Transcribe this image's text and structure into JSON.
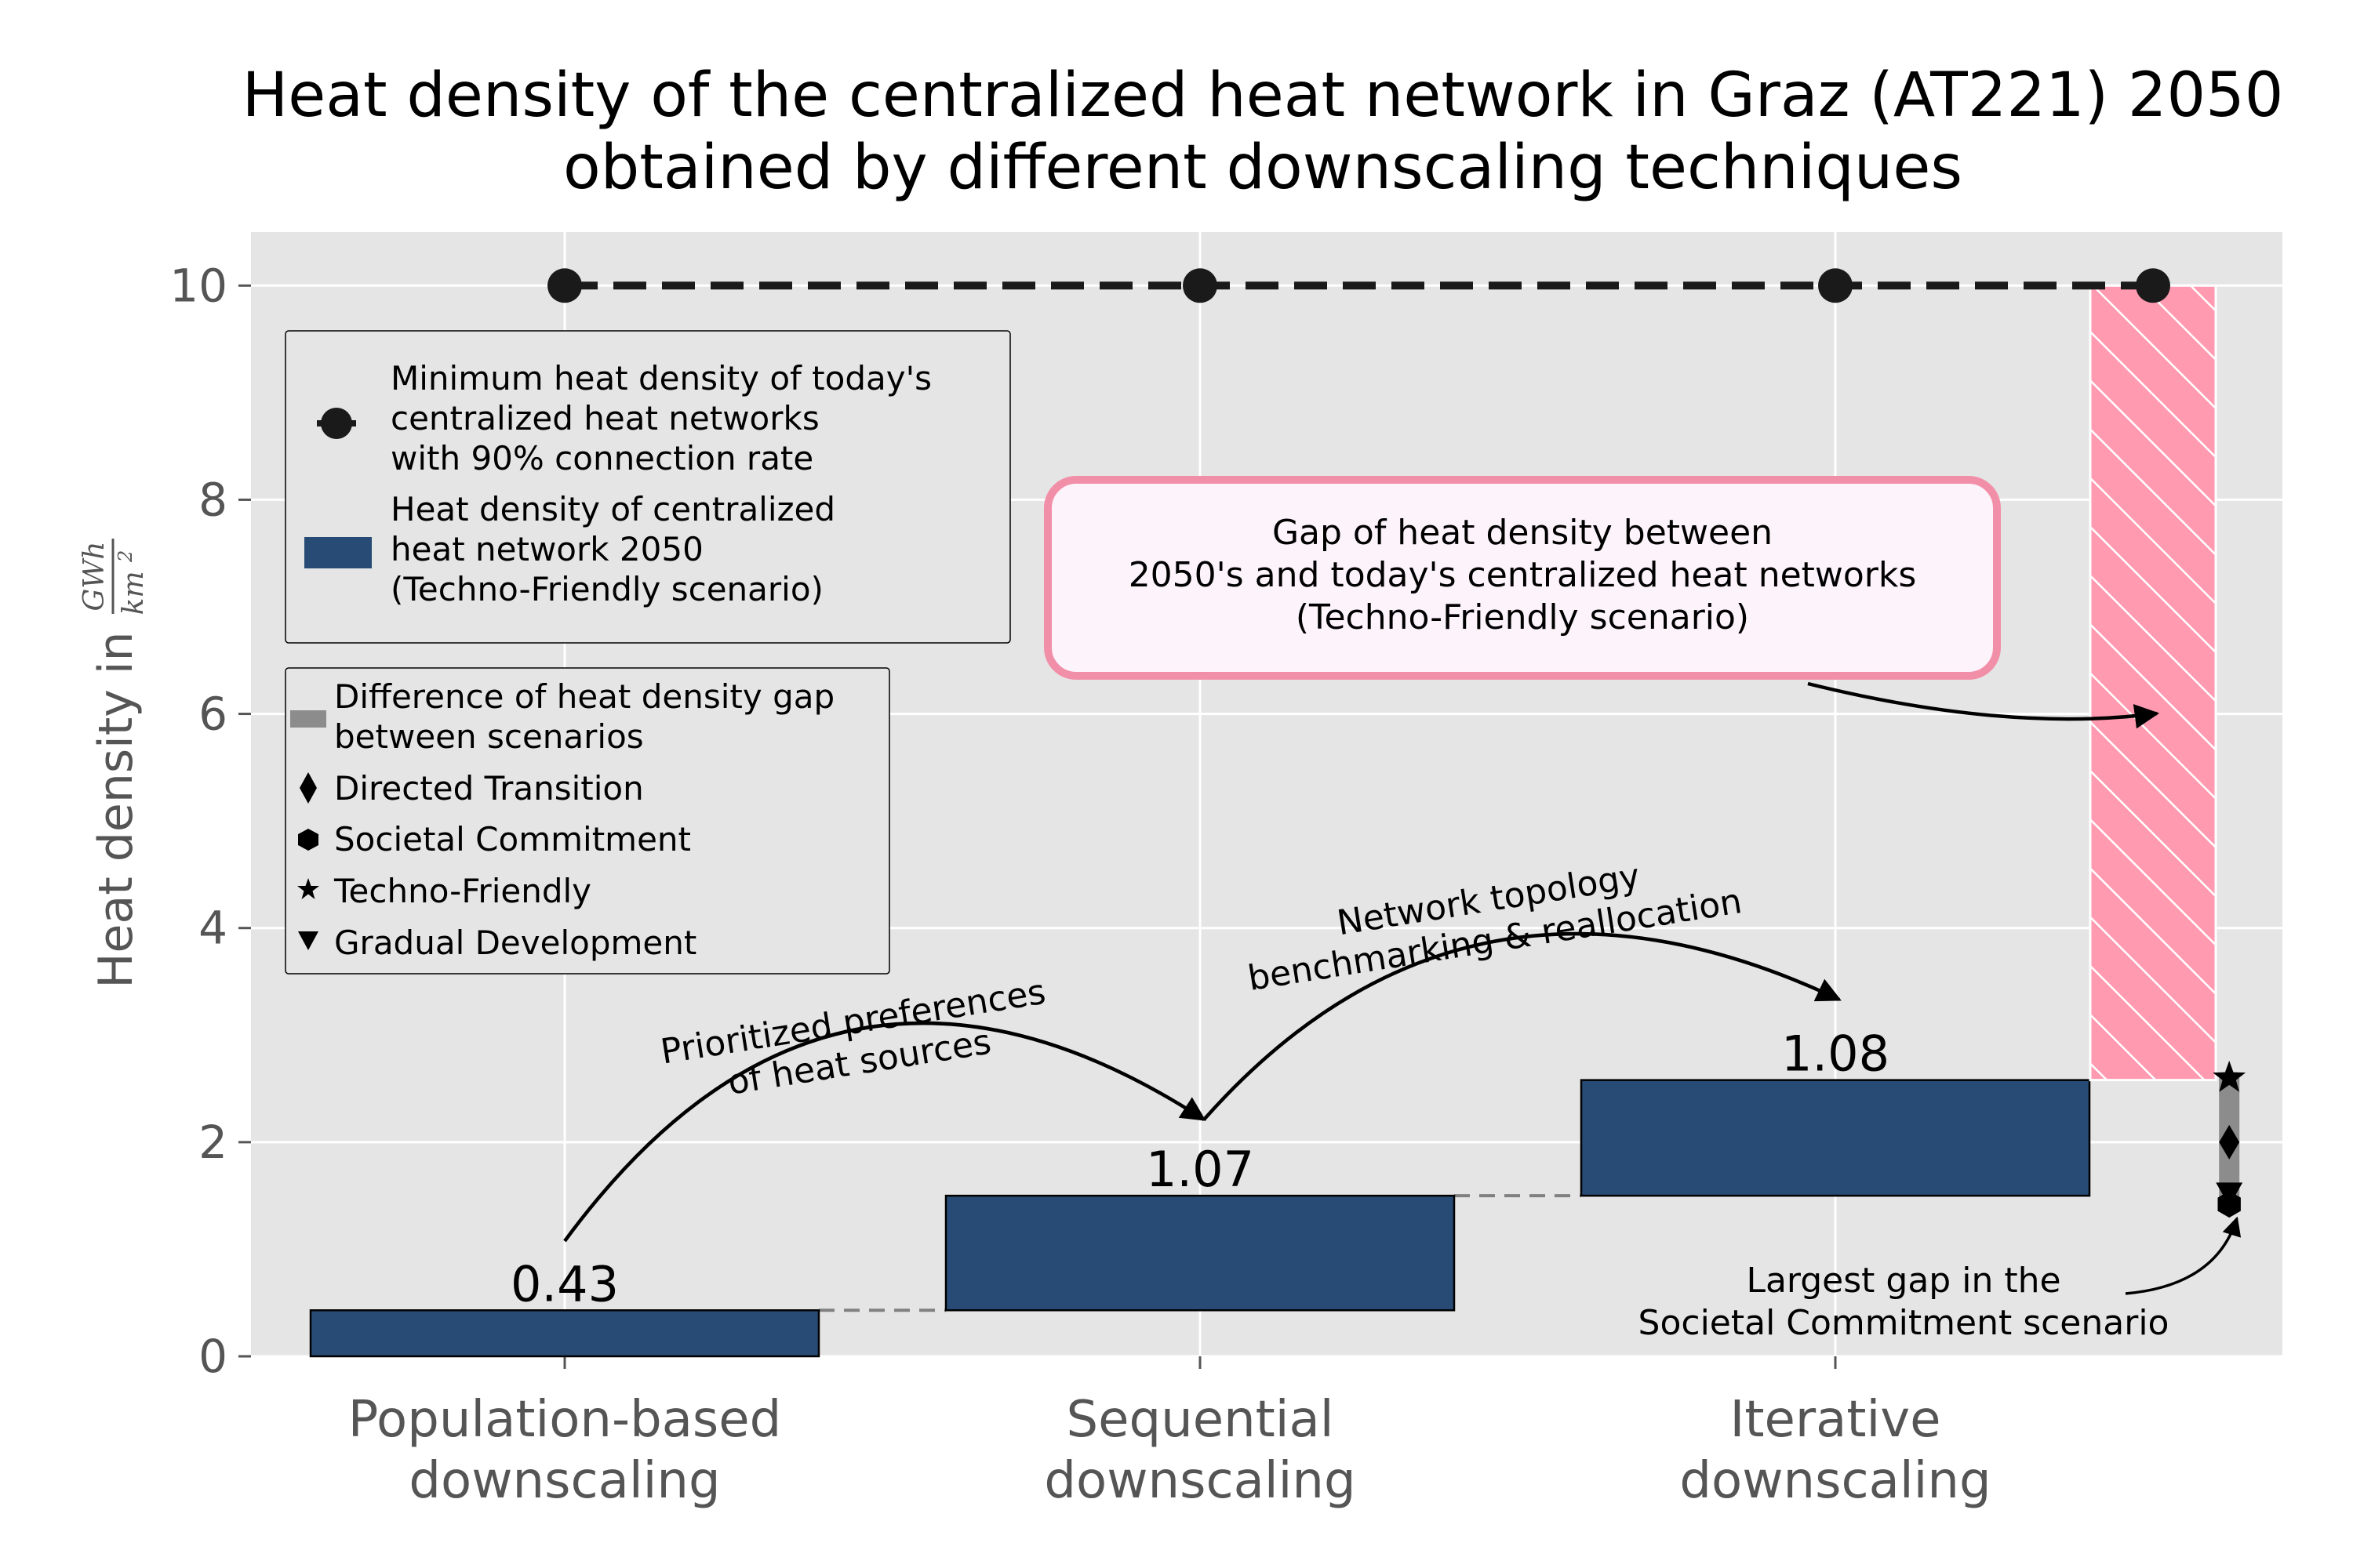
{
  "chart_data": {
    "type": "bar",
    "title_line1": "Heat density of the centralized heat network in Graz (AT221) 2050",
    "title_line2": "obtained by different downscaling techniques",
    "ylabel": "Heat density in",
    "ylabel_unit_num": "GWh",
    "ylabel_unit_den": "km",
    "ylabel_unit_exp": "2",
    "ylim": [
      0,
      10.5
    ],
    "yticks": [
      0,
      2,
      4,
      6,
      8,
      10
    ],
    "grid": true,
    "categories": [
      {
        "line1": "Population-based",
        "line2": "downscaling"
      },
      {
        "line1": "Sequential",
        "line2": "downscaling"
      },
      {
        "line1": "Iterative",
        "line2": "downscaling"
      }
    ],
    "bars": [
      {
        "bottom": 0.0,
        "top": 0.43,
        "label": "0.43"
      },
      {
        "bottom": 0.43,
        "top": 1.5,
        "label": "1.07"
      },
      {
        "bottom": 1.5,
        "top": 2.58,
        "label": "1.08"
      }
    ],
    "minimum_line": {
      "value": 10,
      "x": [
        0,
        1,
        2,
        2.5
      ]
    },
    "gap_bar": {
      "x": 2.5,
      "bottom": 2.58,
      "top": 10
    },
    "scenario_range": {
      "x": 2.62,
      "bottom": 1.42,
      "top": 2.6
    },
    "scenario_markers": [
      {
        "name": "Techno-Friendly",
        "symbol": "star",
        "value": 2.6
      },
      {
        "name": "Directed Transition",
        "symbol": "diamond",
        "value": 2.0
      },
      {
        "name": "Gradual Development",
        "symbol": "triangle-down",
        "value": 1.52
      },
      {
        "name": "Societal Commitment",
        "symbol": "hexagon",
        "value": 1.42
      }
    ],
    "legend1": {
      "placement": "upper-left",
      "entries": [
        {
          "lines": [
            "Minimum heat density of today's",
            "centralized heat networks",
            "with 90% connection rate"
          ]
        },
        {
          "lines": [
            "Heat density of centralized",
            "heat network 2050",
            "(Techno-Friendly scenario)"
          ]
        }
      ]
    },
    "legend2": {
      "placement": "middle-left",
      "entries": [
        {
          "lines": [
            "Difference of heat density gap",
            "between scenarios"
          ]
        },
        {
          "lines": [
            "Directed Transition"
          ]
        },
        {
          "lines": [
            "Societal Commitment"
          ]
        },
        {
          "lines": [
            "Techno-Friendly"
          ]
        },
        {
          "lines": [
            "Gradual Development"
          ]
        }
      ]
    },
    "annotations": {
      "gap_box": [
        "Gap of heat density between",
        "2050's and today's centralized heat networks",
        "(Techno-Friendly scenario)"
      ],
      "arrow1": [
        "Prioritized preferences",
        "of heat sources"
      ],
      "arrow2": [
        "Network topology",
        "benchmarking & reallocation"
      ],
      "largest_gap": [
        "Largest gap in the",
        "Societal Commitment scenario"
      ]
    },
    "colors": {
      "plot_bg": "#e5e5e5",
      "bar": "#274b74",
      "gap": "#ff9ab0",
      "gap_box_edge": "#f28fa8",
      "gap_box_fill": "#fdf3fb",
      "line": "#1a1a1a",
      "range": "#8c8c8c"
    }
  }
}
